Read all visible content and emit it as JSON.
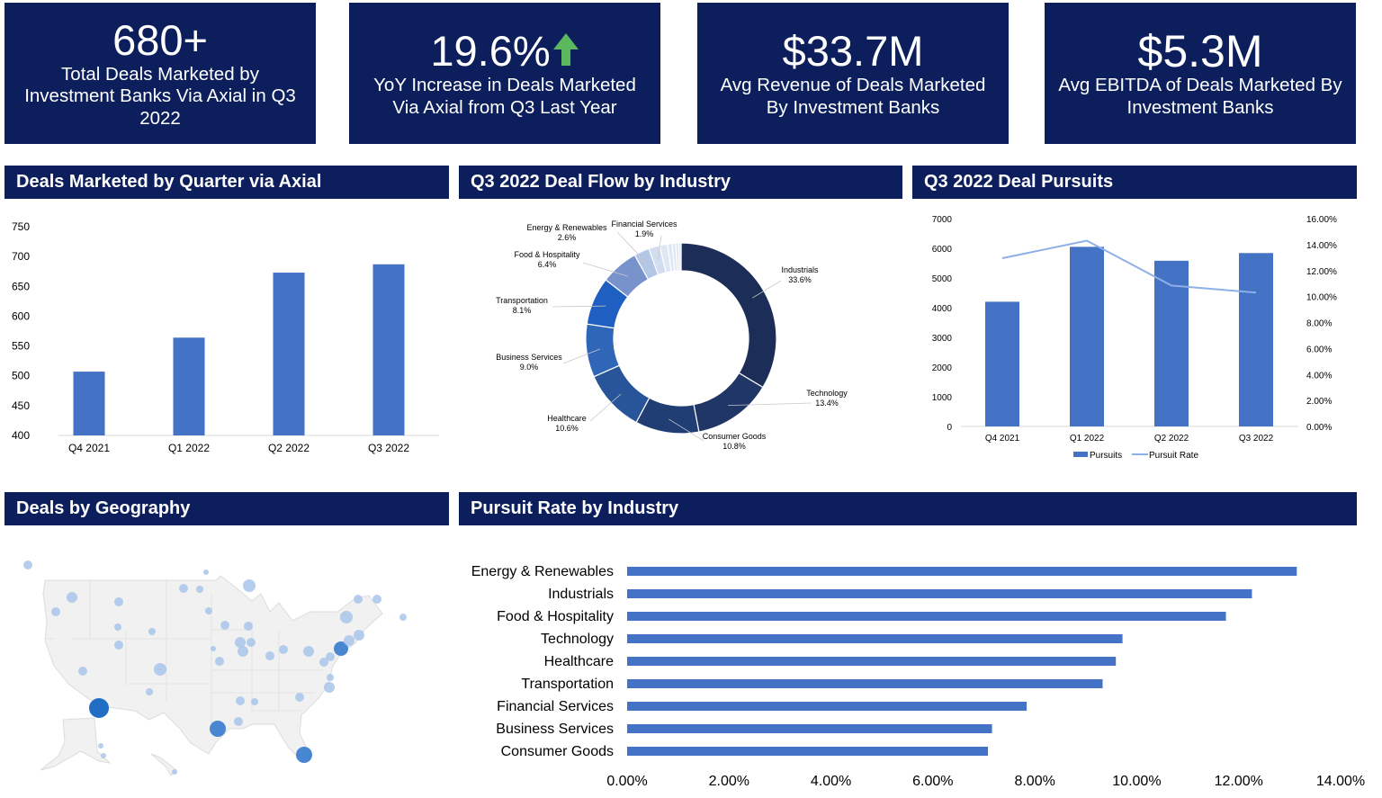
{
  "kpis": [
    {
      "value": "680+",
      "label": "Total Deals Marketed by Investment Banks Via Axial in Q3 2022"
    },
    {
      "value": "19.6%",
      "label": "YoY Increase in Deals Marketed Via Axial from Q3 Last Year",
      "icon": "arrow-up-icon",
      "icon_color": "#5cb85c"
    },
    {
      "value": "$33.7M",
      "label": "Avg Revenue of Deals Marketed By Investment Banks"
    },
    {
      "value": "$5.3M",
      "label": "Avg EBITDA of Deals Marketed By Investment Banks"
    }
  ],
  "sections": {
    "deals_by_quarter": "Deals Marketed by Quarter via Axial",
    "deal_flow": "Q3 2022 Deal Flow by Industry",
    "deal_pursuits": "Q3 2022 Deal Pursuits",
    "geography": "Deals by Geography",
    "pursuit_rate": "Pursuit Rate by Industry"
  },
  "colors": {
    "header_bg": "#0c1f5c",
    "bar": "#4472c4",
    "line": "#8fb0e6"
  },
  "chart_data": [
    {
      "type": "bar",
      "title": "Deals Marketed by Quarter via Axial",
      "categories": [
        "Q4  2021",
        "Q1 2022",
        "Q2 2022",
        "Q3 2022"
      ],
      "values": [
        507,
        564,
        673,
        687
      ],
      "ylim": [
        400,
        750
      ],
      "yticks": [
        "400",
        "450",
        "500",
        "550",
        "600",
        "650",
        "700",
        "750"
      ],
      "grid": false
    },
    {
      "type": "pie",
      "title": "Q3 2022 Deal Flow by Industry",
      "donut": true,
      "slices": [
        {
          "label": "Industrials",
          "pct": "33.6%",
          "value": 33.6,
          "color": "#1c2e57"
        },
        {
          "label": "Technology",
          "pct": "13.4%",
          "value": 13.4,
          "color": "#1f3666"
        },
        {
          "label": "Consumer Goods",
          "pct": "10.8%",
          "value": 10.8,
          "color": "#213e74"
        },
        {
          "label": "Healthcare",
          "pct": "10.6%",
          "value": 10.6,
          "color": "#28559a"
        },
        {
          "label": "Business Services",
          "pct": "9.0%",
          "value": 9.0,
          "color": "#2f66b8"
        },
        {
          "label": "Transportation",
          "pct": "8.1%",
          "value": 8.1,
          "color": "#1f5fc2"
        },
        {
          "label": "Food & Hospitality",
          "pct": "6.4%",
          "value": 6.4,
          "color": "#7892cc"
        },
        {
          "label": "Energy & Renewables",
          "pct": "2.6%",
          "value": 2.6,
          "color": "#b3c6e6"
        },
        {
          "label": "Financial Services",
          "pct": "1.9%",
          "value": 1.9,
          "color": "#d2ddf0"
        }
      ],
      "unlabeled_slices": [
        1.3,
        0.8,
        0.6,
        0.5,
        0.4
      ],
      "unlabeled_color": "#dfe7f4"
    },
    {
      "type": "bar",
      "title": "Q3 2022 Deal Pursuits",
      "categories": [
        "Q4  2021",
        "Q1 2022",
        "Q2 2022",
        "Q3 2022"
      ],
      "series": [
        {
          "name": "Pursuits",
          "type": "bar",
          "axis": "left",
          "values": [
            4200,
            6050,
            5580,
            5840
          ]
        },
        {
          "name": "Pursuit Rate",
          "type": "line",
          "axis": "right",
          "values": [
            12.95,
            14.3,
            10.85,
            10.3
          ]
        }
      ],
      "ylim": [
        0,
        7000
      ],
      "yticks": [
        "0",
        "1000",
        "2000",
        "3000",
        "4000",
        "5000",
        "6000",
        "7000"
      ],
      "y2lim": [
        0,
        16
      ],
      "y2ticks": [
        "0.00%",
        "2.00%",
        "4.00%",
        "6.00%",
        "8.00%",
        "10.00%",
        "12.00%",
        "14.00%",
        "16.00%"
      ],
      "legend": "bottom",
      "grid": false
    },
    {
      "type": "bar",
      "orientation": "horizontal",
      "title": "Pursuit Rate by Industry",
      "categories": [
        "Energy & Renewables",
        "Industrials",
        "Food & Hospitality",
        "Technology",
        "Healthcare",
        "Transportation",
        "Financial Services",
        "Business Services",
        "Consumer Goods"
      ],
      "values": [
        13.14,
        12.26,
        11.75,
        9.72,
        9.59,
        9.33,
        7.84,
        7.16,
        7.08
      ],
      "xlim": [
        0,
        14
      ],
      "xticks": [
        "0.00%",
        "2.00%",
        "4.00%",
        "6.00%",
        "8.00%",
        "10.00%",
        "12.00%",
        "14.00%"
      ],
      "grid": false
    }
  ]
}
